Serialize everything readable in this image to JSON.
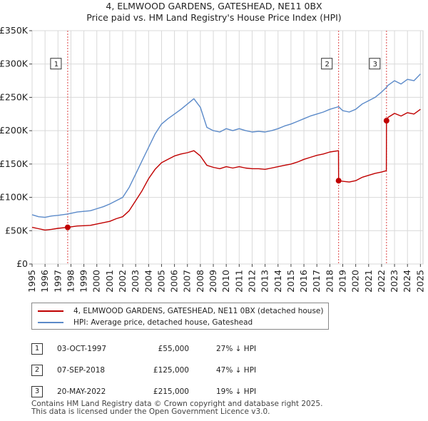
{
  "chart_data": {
    "type": "line",
    "title": "4, ELMWOOD GARDENS, GATESHEAD, NE11 0BX",
    "subtitle": "Price paid vs. HM Land Registry's House Price Index (HPI)",
    "xlabel": "",
    "ylabel": "",
    "xlim": [
      1995,
      2025.2
    ],
    "ylim": [
      0,
      350000
    ],
    "yticks": [
      0,
      50000,
      100000,
      150000,
      200000,
      250000,
      300000,
      350000
    ],
    "ytick_labels": [
      "£0",
      "£50K",
      "£100K",
      "£150K",
      "£200K",
      "£250K",
      "£300K",
      "£350K"
    ],
    "xticks": [
      1995,
      1996,
      1997,
      1998,
      1999,
      2000,
      2001,
      2002,
      2003,
      2004,
      2005,
      2006,
      2007,
      2008,
      2009,
      2010,
      2011,
      2012,
      2013,
      2014,
      2015,
      2016,
      2017,
      2018,
      2019,
      2020,
      2021,
      2022,
      2023,
      2024,
      2025
    ],
    "series": [
      {
        "name": "HPI: Average price, detached house, Gateshead",
        "color": "#5b8ac9",
        "x": [
          1995.0,
          1995.5,
          1996.0,
          1996.5,
          1997.0,
          1997.75,
          1998.5,
          1999.0,
          1999.5,
          2000.0,
          2000.5,
          2001.0,
          2001.5,
          2002.0,
          2002.5,
          2003.0,
          2003.5,
          2004.0,
          2004.5,
          2005.0,
          2005.5,
          2006.0,
          2006.5,
          2007.0,
          2007.5,
          2008.0,
          2008.5,
          2009.0,
          2009.5,
          2010.0,
          2010.5,
          2011.0,
          2011.5,
          2012.0,
          2012.5,
          2013.0,
          2013.5,
          2014.0,
          2014.5,
          2015.0,
          2015.5,
          2016.0,
          2016.5,
          2017.0,
          2017.5,
          2018.0,
          2018.68,
          2019.0,
          2019.5,
          2020.0,
          2020.5,
          2021.0,
          2021.5,
          2022.0,
          2022.38,
          2022.5,
          2023.0,
          2023.5,
          2024.0,
          2024.5,
          2025.0
        ],
        "y": [
          74000,
          71000,
          70000,
          72000,
          73000,
          75000,
          78000,
          79000,
          80000,
          83000,
          86000,
          90000,
          95000,
          100000,
          115000,
          135000,
          155000,
          175000,
          195000,
          210000,
          218000,
          225000,
          232000,
          240000,
          248000,
          235000,
          205000,
          200000,
          198000,
          203000,
          200000,
          203000,
          200000,
          198000,
          199000,
          198000,
          200000,
          203000,
          207000,
          210000,
          214000,
          218000,
          222000,
          225000,
          228000,
          232000,
          236000,
          230000,
          228000,
          232000,
          240000,
          245000,
          250000,
          258000,
          265000,
          268000,
          275000,
          270000,
          277000,
          275000,
          285000
        ]
      },
      {
        "name": "4, ELMWOOD GARDENS, GATESHEAD, NE11 0BX (detached house)",
        "color": "#c00000",
        "x": [
          1995.0,
          1995.5,
          1996.0,
          1996.5,
          1997.0,
          1997.75,
          1998.5,
          1999.0,
          1999.5,
          2000.0,
          2000.5,
          2001.0,
          2001.5,
          2002.0,
          2002.5,
          2003.0,
          2003.5,
          2004.0,
          2004.5,
          2005.0,
          2005.5,
          2006.0,
          2006.5,
          2007.0,
          2007.5,
          2008.0,
          2008.5,
          2009.0,
          2009.5,
          2010.0,
          2010.5,
          2011.0,
          2011.5,
          2012.0,
          2012.5,
          2013.0,
          2013.5,
          2014.0,
          2014.5,
          2015.0,
          2015.5,
          2016.0,
          2016.5,
          2017.0,
          2017.5,
          2018.0,
          2018.67,
          2018.68,
          2019.0,
          2019.5,
          2020.0,
          2020.5,
          2021.0,
          2021.5,
          2022.0,
          2022.37,
          2022.38,
          2022.5,
          2023.0,
          2023.5,
          2024.0,
          2024.5,
          2025.0
        ],
        "y": [
          55000,
          53000,
          51000,
          52000,
          53500,
          55000,
          57000,
          57500,
          58000,
          60000,
          62000,
          64000,
          68000,
          71000,
          80000,
          95000,
          110000,
          128000,
          142000,
          152000,
          157000,
          162000,
          165000,
          167000,
          170000,
          162000,
          148000,
          145000,
          143000,
          146000,
          144000,
          146000,
          144000,
          143000,
          143000,
          142000,
          144000,
          146000,
          148000,
          150000,
          153000,
          157000,
          160000,
          163000,
          165000,
          168000,
          170000,
          125000,
          124000,
          123000,
          125000,
          130000,
          133000,
          136000,
          138000,
          140000,
          215000,
          220000,
          226000,
          222000,
          227000,
          225000,
          232000
        ]
      }
    ],
    "sales": [
      {
        "label": "1",
        "x": 1997.75,
        "y": 55000
      },
      {
        "label": "2",
        "x": 2018.68,
        "y": 125000
      },
      {
        "label": "3",
        "x": 2022.38,
        "y": 215000
      }
    ],
    "grid": true
  },
  "legend": {
    "property_label": "4, ELMWOOD GARDENS, GATESHEAD, NE11 0BX (detached house)",
    "hpi_label": "HPI: Average price, detached house, Gateshead"
  },
  "transactions": [
    {
      "num": "1",
      "date": "03-OCT-1997",
      "price": "£55,000",
      "hpi": "27% ↓ HPI"
    },
    {
      "num": "2",
      "date": "07-SEP-2018",
      "price": "£125,000",
      "hpi": "47% ↓ HPI"
    },
    {
      "num": "3",
      "date": "20-MAY-2022",
      "price": "£215,000",
      "hpi": "19% ↓ HPI"
    }
  ],
  "footer": {
    "line1": "Contains HM Land Registry data © Crown copyright and database right 2025.",
    "line2": "This data is licensed under the Open Government Licence v3.0."
  }
}
